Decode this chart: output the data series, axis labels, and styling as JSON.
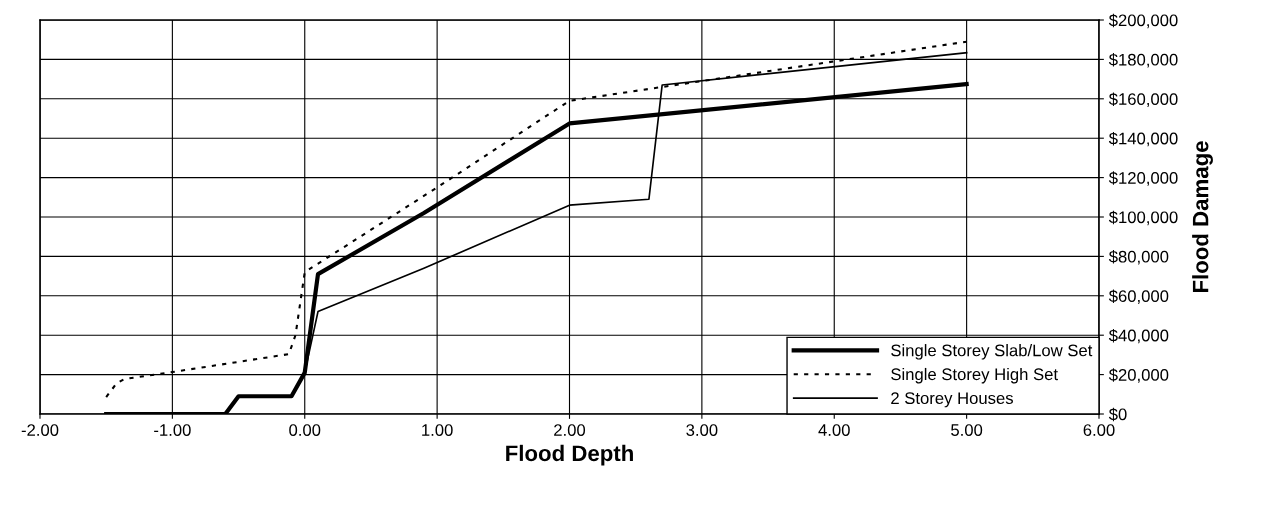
{
  "chart_data": {
    "type": "line",
    "xlabel": "Flood Depth",
    "y2label": "Flood Damage",
    "xlim": [
      -2,
      6
    ],
    "xticks": [
      {
        "value": -2,
        "label": "-2.00"
      },
      {
        "value": -1,
        "label": "-1.00"
      },
      {
        "value": 0,
        "label": "0.00"
      },
      {
        "value": 1,
        "label": "1.00"
      },
      {
        "value": 2,
        "label": "2.00"
      },
      {
        "value": 3,
        "label": "3.00"
      },
      {
        "value": 4,
        "label": "4.00"
      },
      {
        "value": 5,
        "label": "5.00"
      },
      {
        "value": 6,
        "label": "6.00"
      }
    ],
    "y2lim": [
      0,
      200000
    ],
    "y2ticks": [
      {
        "value": 0,
        "label": "$0"
      },
      {
        "value": 20000,
        "label": "$20,000"
      },
      {
        "value": 40000,
        "label": "$40,000"
      },
      {
        "value": 60000,
        "label": "$60,000"
      },
      {
        "value": 80000,
        "label": "$80,000"
      },
      {
        "value": 100000,
        "label": "$100,000"
      },
      {
        "value": 120000,
        "label": "$120,000"
      },
      {
        "value": 140000,
        "label": "$140,000"
      },
      {
        "value": 160000,
        "label": "$160,000"
      },
      {
        "value": 180000,
        "label": "$180,000"
      },
      {
        "value": 200000,
        "label": "$200,000"
      }
    ],
    "grid": true,
    "legend": "bottom right",
    "series": [
      {
        "name": "Single Storey Slab/Low Set",
        "color": "#000000",
        "axis": "y2",
        "line_style": "solid",
        "x": [
          -1.5,
          -0.6,
          -0.5,
          -0.1,
          0,
          0.1,
          0.9,
          2,
          5
        ],
        "values": [
          0,
          0,
          9000,
          9000,
          21000,
          71000,
          102000,
          147500,
          167500
        ]
      },
      {
        "name": "Single Storey High Set",
        "color": "#000000",
        "axis": "y2",
        "line_style": "dotted",
        "x": [
          -1.5,
          -1.42,
          -1.36,
          -1.0,
          -0.12,
          -0.07,
          0.0,
          1,
          2,
          5
        ],
        "values": [
          8600,
          15700,
          17800,
          21300,
          30400,
          40000,
          72000,
          115000,
          159000,
          189000
        ]
      },
      {
        "name": "2 Storey Houses",
        "color": "#000000",
        "axis": "y2",
        "line_style": "solid",
        "x": [
          0,
          0.1,
          0.9,
          2,
          2.6,
          2.7,
          5
        ],
        "values": [
          21000,
          52000,
          74000,
          106000,
          109000,
          167000,
          183400
        ]
      }
    ]
  }
}
